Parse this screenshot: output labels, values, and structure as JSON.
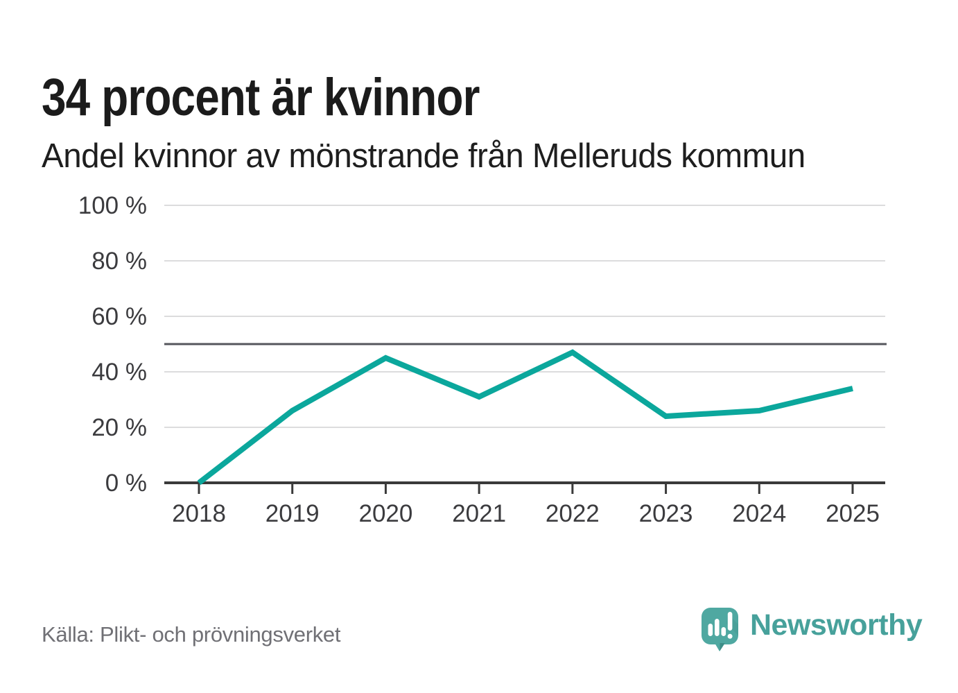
{
  "header": {
    "title": "34 procent är kvinnor",
    "subtitle": "Andel kvinnor av mönstrande från Melleruds kommun"
  },
  "footer": {
    "source": "Källa: Plikt- och prövningsverket",
    "brand": "Newsworthy"
  },
  "icons": {
    "logo": "newsworthy-speech-bubble-with-bar-chart-and-exclamation"
  },
  "colors": {
    "line": "#0ba79c",
    "reference_line": "#55565c",
    "gridline": "#dcdcdd",
    "axis": "#3a3a3a",
    "tick_text": "#3b3b3e",
    "title_text": "#1b1b1b",
    "source_text": "#707075",
    "logo_teal": "#4fa8a1",
    "logo_teal_dark": "#3d8d87",
    "wordmark_teal": "#47a19b"
  },
  "chart_data": {
    "type": "line",
    "title": "Andel kvinnor av mönstrande från Melleruds kommun",
    "x": [
      2018,
      2019,
      2020,
      2021,
      2022,
      2023,
      2024,
      2025
    ],
    "series": [
      {
        "name": "Andel kvinnor",
        "values": [
          0,
          26,
          45,
          31,
          47,
          24,
          26,
          34
        ]
      }
    ],
    "unit": "%",
    "ylim": [
      0,
      100
    ],
    "yticks": [
      0,
      20,
      40,
      60,
      80,
      100
    ],
    "ytick_suffix": " %",
    "xtick_labels": [
      "2018",
      "2019",
      "2020",
      "2021",
      "2022",
      "2023",
      "2024",
      "2025"
    ],
    "reference_line_y": 50,
    "grid": true,
    "legend": "none"
  }
}
